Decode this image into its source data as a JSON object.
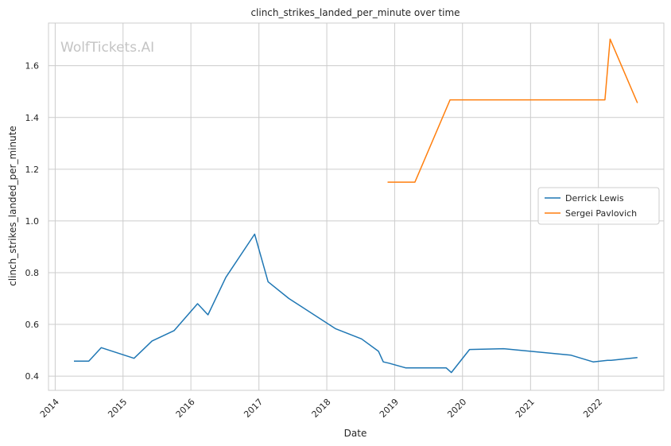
{
  "chart_data": {
    "type": "line",
    "title": "clinch_strikes_landed_per_minute over time",
    "xlabel": "Date",
    "ylabel": "clinch_strikes_landed_per_minute",
    "watermark": "WolfTickets.AI",
    "xlim": [
      "2013-11-26",
      "2022-12-19"
    ],
    "ylim": [
      0.345,
      1.765
    ],
    "x_ticks": [
      "2014",
      "2015",
      "2016",
      "2017",
      "2018",
      "2019",
      "2020",
      "2021",
      "2022"
    ],
    "y_ticks": [
      "0.4",
      "0.6",
      "0.8",
      "1.0",
      "1.2",
      "1.4",
      "1.6"
    ],
    "grid": true,
    "legend_position": "center-right",
    "series": [
      {
        "name": "Derrick Lewis",
        "color": "#1f77b4",
        "x": [
          "2014-04-12",
          "2014-07-01",
          "2014-09-06",
          "2015-03-01",
          "2015-06-06",
          "2015-10-03",
          "2016-02-06",
          "2016-04-02",
          "2016-07-07",
          "2016-12-09",
          "2017-02-19",
          "2017-06-11",
          "2018-02-18",
          "2018-07-07",
          "2018-10-06",
          "2018-11-01",
          "2018-12-01",
          "2019-03-01",
          "2019-10-05",
          "2019-11-02",
          "2020-02-08",
          "2020-08-08",
          "2021-08-07",
          "2021-12-04",
          "2022-02-19",
          "2022-03-10",
          "2022-07-30"
        ],
        "values": [
          0.458,
          0.458,
          0.51,
          0.469,
          0.536,
          0.576,
          0.68,
          0.637,
          0.782,
          0.949,
          0.765,
          0.7,
          0.583,
          0.544,
          0.496,
          0.455,
          0.45,
          0.432,
          0.432,
          0.414,
          0.503,
          0.506,
          0.481,
          0.455,
          0.461,
          0.461,
          0.472
        ]
      },
      {
        "name": "Sergei Pavlovich",
        "color": "#ff7f0e",
        "x": [
          "2018-11-24",
          "2019-04-20",
          "2019-10-26",
          "2022-02-05",
          "2022-03-05",
          "2022-07-30"
        ],
        "values": [
          1.15,
          1.15,
          1.468,
          1.468,
          1.703,
          1.456
        ]
      }
    ]
  }
}
